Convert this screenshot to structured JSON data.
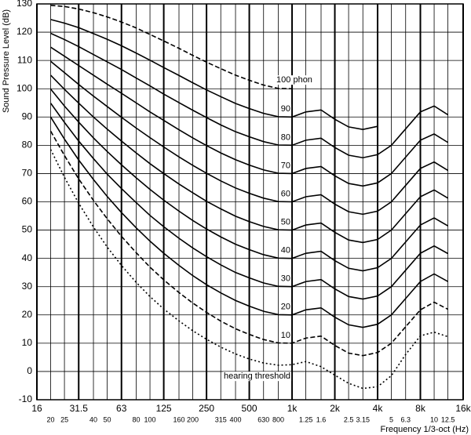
{
  "chart_data": {
    "type": "line",
    "xlabel": "Frequency 1/3-oct (Hz)",
    "ylabel": "Sound Pressure Level (dB)",
    "xscale": "log",
    "grid": true,
    "xlim": [
      16,
      16000
    ],
    "ylim": [
      -10,
      130
    ],
    "yticks": [
      -10,
      0,
      10,
      20,
      30,
      40,
      50,
      60,
      70,
      80,
      90,
      100,
      110,
      120,
      130
    ],
    "xticks": [
      16,
      31.5,
      63,
      125,
      250,
      500,
      {
        "value": 1000,
        "label": "1k"
      },
      {
        "value": 2000,
        "label": "2k"
      },
      {
        "value": 4000,
        "label": "4k"
      },
      {
        "value": 8000,
        "label": "8k"
      },
      {
        "value": 16000,
        "label": "16k"
      }
    ],
    "xminor_ticks": [
      20,
      25,
      40,
      50,
      80,
      100,
      160,
      200,
      315,
      400,
      630,
      800,
      {
        "value": 1250,
        "label": "1.25"
      },
      {
        "value": 1600,
        "label": "1.6"
      },
      {
        "value": 2500,
        "label": "2.5"
      },
      {
        "value": 3150,
        "label": "3.15"
      },
      {
        "value": 5000,
        "label": "5"
      },
      {
        "value": 6300,
        "label": "6.3"
      },
      {
        "value": 10000,
        "label": "10"
      },
      {
        "value": 12500,
        "label": "12.5"
      }
    ],
    "x": [
      20,
      25,
      31.5,
      40,
      50,
      63,
      80,
      100,
      125,
      160,
      200,
      250,
      315,
      400,
      500,
      630,
      800,
      1000,
      1250,
      1600,
      2000,
      2500,
      3150,
      4000,
      5000,
      6300,
      8000,
      10000,
      12500
    ],
    "series": [
      {
        "name": "100 phon",
        "color": "#000000",
        "dash": "dashed",
        "values": [
          129.5,
          129.1,
          128.2,
          126.9,
          125.4,
          123.6,
          121.5,
          119.2,
          116.9,
          114.3,
          111.8,
          109.4,
          107.1,
          104.8,
          103.0,
          101.3,
          100.1,
          100.0,
          null,
          null,
          null,
          null,
          null,
          null,
          null,
          null,
          null,
          null,
          null
        ]
      },
      {
        "name": "90",
        "color": "#000000",
        "dash": "solid",
        "values": [
          124.5,
          123.2,
          121.6,
          119.5,
          117.5,
          115.2,
          112.6,
          110.1,
          107.5,
          104.7,
          102.1,
          99.6,
          97.2,
          94.8,
          93.0,
          91.3,
          90.1,
          90.0,
          91.8,
          92.5,
          89.2,
          86.5,
          85.6,
          86.7,
          null,
          null,
          null,
          null,
          null
        ]
      },
      {
        "name": "80",
        "color": "#000000",
        "dash": "solid",
        "values": [
          119.6,
          117.4,
          114.9,
          112.1,
          109.5,
          106.8,
          103.8,
          101.0,
          98.1,
          95.1,
          92.4,
          89.8,
          87.2,
          84.8,
          83.0,
          81.3,
          80.1,
          80.0,
          81.8,
          82.5,
          79.2,
          76.5,
          75.6,
          76.7,
          80.0,
          85.8,
          91.8,
          93.9,
          90.8
        ]
      },
      {
        "name": "70",
        "color": "#000000",
        "dash": "solid",
        "values": [
          114.7,
          111.5,
          108.2,
          104.8,
          101.6,
          98.4,
          95.0,
          91.8,
          88.8,
          85.5,
          82.6,
          79.9,
          77.3,
          74.9,
          73.0,
          71.3,
          70.1,
          70.0,
          71.8,
          72.5,
          69.2,
          66.5,
          65.6,
          66.7,
          70.0,
          75.8,
          81.8,
          84.0,
          81.0
        ]
      },
      {
        "name": "60",
        "color": "#000000",
        "dash": "solid",
        "values": [
          109.7,
          105.7,
          101.5,
          97.4,
          93.7,
          89.9,
          86.1,
          82.7,
          79.4,
          75.9,
          72.9,
          70.1,
          67.4,
          64.9,
          63.0,
          61.3,
          60.1,
          60.0,
          61.8,
          62.5,
          59.2,
          56.5,
          55.6,
          56.7,
          60.0,
          65.8,
          71.8,
          74.1,
          71.1
        ]
      },
      {
        "name": "50",
        "color": "#000000",
        "dash": "solid",
        "values": [
          104.8,
          99.8,
          94.9,
          90.0,
          85.7,
          81.5,
          77.3,
          73.5,
          70.0,
          66.3,
          63.2,
          60.2,
          57.5,
          54.9,
          53.0,
          51.3,
          50.1,
          50.0,
          51.8,
          52.5,
          49.2,
          46.5,
          45.6,
          46.7,
          50.0,
          55.8,
          61.8,
          64.2,
          61.3
        ]
      },
      {
        "name": "40",
        "color": "#000000",
        "dash": "solid",
        "values": [
          99.9,
          93.9,
          88.2,
          82.6,
          77.8,
          73.1,
          68.5,
          64.4,
          60.6,
          56.7,
          53.4,
          50.4,
          47.6,
          45.0,
          43.1,
          41.3,
          40.1,
          40.0,
          41.8,
          42.5,
          39.2,
          36.5,
          35.6,
          36.7,
          40.0,
          45.8,
          51.8,
          54.3,
          51.5
        ]
      },
      {
        "name": "30",
        "color": "#000000",
        "dash": "solid",
        "values": [
          94.9,
          88.1,
          81.5,
          75.3,
          69.8,
          64.7,
          59.7,
          55.2,
          51.2,
          47.1,
          43.7,
          40.6,
          37.7,
          35.0,
          33.1,
          31.3,
          30.1,
          30.0,
          31.8,
          32.5,
          29.2,
          26.5,
          25.6,
          26.7,
          30.0,
          35.8,
          41.8,
          44.4,
          41.7
        ]
      },
      {
        "name": "20",
        "color": "#000000",
        "dash": "solid",
        "values": [
          90.0,
          82.2,
          74.8,
          67.9,
          61.9,
          56.2,
          50.8,
          46.1,
          41.8,
          37.5,
          33.9,
          30.7,
          27.8,
          25.1,
          23.1,
          21.3,
          20.1,
          20.0,
          21.8,
          22.5,
          19.2,
          16.5,
          15.6,
          16.7,
          20.0,
          25.8,
          31.8,
          34.5,
          31.8
        ]
      },
      {
        "name": "10",
        "color": "#000000",
        "dash": "dashed",
        "values": [
          85.0,
          76.4,
          68.1,
          60.5,
          54.0,
          47.8,
          42.0,
          36.9,
          32.4,
          27.9,
          24.2,
          20.9,
          17.8,
          15.1,
          13.1,
          11.3,
          10.1,
          10.0,
          11.8,
          12.5,
          9.2,
          6.5,
          5.6,
          6.7,
          10.0,
          15.8,
          21.8,
          24.5,
          22.0
        ]
      },
      {
        "name": "hearing threshold",
        "color": "#000000",
        "dash": "dotted",
        "values": [
          78.5,
          68.7,
          59.5,
          51.1,
          44.0,
          37.5,
          31.5,
          26.5,
          22.1,
          17.9,
          14.4,
          11.4,
          8.6,
          6.2,
          4.4,
          3.0,
          2.2,
          2.4,
          3.5,
          1.7,
          -1.3,
          -4.2,
          -6.0,
          -5.4,
          -1.5,
          6.0,
          12.6,
          13.9,
          12.3
        ]
      }
    ]
  }
}
